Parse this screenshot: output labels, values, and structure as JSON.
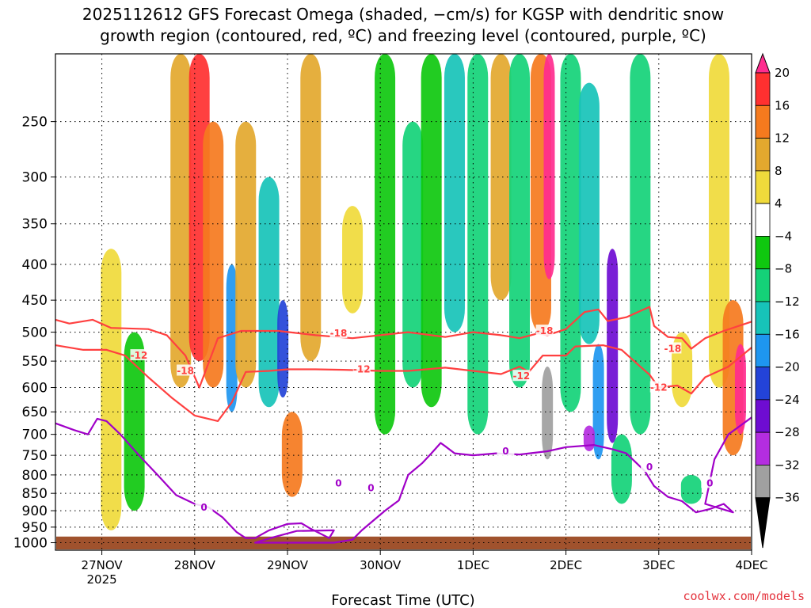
{
  "title": {
    "line1": "2025112612 GFS Forecast Omega (shaded, −cm/s) for KGSP with dendritic snow",
    "line2": "growth region (contoured, red, ºC) and freezing level (contoured, purple, ºC)"
  },
  "credit": "coolwx.com/models",
  "colors": {
    "snow_growth_contour": "#ff4040",
    "freezing_contour": "#a000c8",
    "ground": "#a0522d",
    "grid": "#000000"
  },
  "chart_data": {
    "type": "heatmap",
    "xlabel": "Forecast Time (UTC)",
    "ylabel": "",
    "x_ticks": [
      {
        "label": "27NOV",
        "sublabel": "2025",
        "t": 0.5
      },
      {
        "label": "28NOV",
        "t": 1.5
      },
      {
        "label": "29NOV",
        "t": 2.5
      },
      {
        "label": "30NOV",
        "t": 3.5
      },
      {
        "label": "1DEC",
        "t": 4.5
      },
      {
        "label": "2DEC",
        "t": 5.5
      },
      {
        "label": "3DEC",
        "t": 6.5
      },
      {
        "label": "4DEC",
        "t": 7.5
      }
    ],
    "xlim": [
      0,
      7.5
    ],
    "y_ticks": [
      250,
      300,
      350,
      400,
      450,
      500,
      550,
      600,
      650,
      700,
      750,
      800,
      850,
      900,
      950,
      1000
    ],
    "ylim": [
      1025,
      200
    ],
    "y_scale": "log-pressure",
    "grid": true,
    "colorbar": {
      "levels": [
        -36,
        -32,
        -28,
        -24,
        -20,
        -16,
        -12,
        -8,
        -4,
        4,
        8,
        12,
        16,
        20
      ],
      "labels": [
        "20",
        "16",
        "12",
        "8",
        "4",
        "−4",
        "−8",
        "−12",
        "−16",
        "−20",
        "−24",
        "−28",
        "−32",
        "−36"
      ],
      "colors": [
        "#ff2d8f",
        "#ff3030",
        "#f57a1e",
        "#e3a82e",
        "#f0da3b",
        "#ffffff",
        "#0fc80f",
        "#14d278",
        "#17c3b9",
        "#1e96f0",
        "#2343d8",
        "#6e0cd2",
        "#b42de0",
        "#a0a0a0",
        "#000000"
      ]
    },
    "shading": [
      {
        "center_t": 0.6,
        "p_top": 380,
        "p_bot": 960,
        "value": 6
      },
      {
        "center_t": 0.85,
        "p_top": 500,
        "p_bot": 900,
        "value": -8
      },
      {
        "center_t": 1.35,
        "p_top": 200,
        "p_bot": 600,
        "value": 8
      },
      {
        "center_t": 1.55,
        "p_top": 200,
        "p_bot": 550,
        "value": 16
      },
      {
        "center_t": 1.7,
        "p_top": 250,
        "p_bot": 600,
        "value": 12
      },
      {
        "center_t": 1.9,
        "p_top": 400,
        "p_bot": 650,
        "value": -20
      },
      {
        "center_t": 2.05,
        "p_top": 250,
        "p_bot": 600,
        "value": 8
      },
      {
        "center_t": 2.3,
        "p_top": 300,
        "p_bot": 640,
        "value": -16
      },
      {
        "center_t": 2.45,
        "p_top": 450,
        "p_bot": 620,
        "value": -24
      },
      {
        "center_t": 2.55,
        "p_top": 650,
        "p_bot": 860,
        "value": 12
      },
      {
        "center_t": 2.75,
        "p_top": 200,
        "p_bot": 550,
        "value": 8
      },
      {
        "center_t": 3.2,
        "p_top": 330,
        "p_bot": 470,
        "value": 4
      },
      {
        "center_t": 3.55,
        "p_top": 200,
        "p_bot": 700,
        "value": -8
      },
      {
        "center_t": 3.85,
        "p_top": 250,
        "p_bot": 600,
        "value": -12
      },
      {
        "center_t": 4.05,
        "p_top": 200,
        "p_bot": 640,
        "value": -8
      },
      {
        "center_t": 4.3,
        "p_top": 200,
        "p_bot": 500,
        "value": -16
      },
      {
        "center_t": 4.55,
        "p_top": 200,
        "p_bot": 700,
        "value": -12
      },
      {
        "center_t": 4.8,
        "p_top": 200,
        "p_bot": 450,
        "value": 8
      },
      {
        "center_t": 5.0,
        "p_top": 200,
        "p_bot": 600,
        "value": -12
      },
      {
        "center_t": 5.23,
        "p_top": 200,
        "p_bot": 500,
        "value": 12
      },
      {
        "center_t": 5.32,
        "p_top": 200,
        "p_bot": 420,
        "value": 20
      },
      {
        "center_t": 5.3,
        "p_top": 560,
        "p_bot": 760,
        "value": -36
      },
      {
        "center_t": 5.55,
        "p_top": 200,
        "p_bot": 650,
        "value": -12
      },
      {
        "center_t": 5.75,
        "p_top": 220,
        "p_bot": 520,
        "value": -16
      },
      {
        "center_t": 5.85,
        "p_top": 520,
        "p_bot": 760,
        "value": -20
      },
      {
        "center_t": 5.75,
        "p_top": 680,
        "p_bot": 740,
        "value": -32
      },
      {
        "center_t": 6.0,
        "p_top": 380,
        "p_bot": 720,
        "value": -28
      },
      {
        "center_t": 6.3,
        "p_top": 200,
        "p_bot": 700,
        "value": -12
      },
      {
        "center_t": 6.1,
        "p_top": 700,
        "p_bot": 880,
        "value": -12
      },
      {
        "center_t": 6.75,
        "p_top": 500,
        "p_bot": 640,
        "value": 6
      },
      {
        "center_t": 7.15,
        "p_top": 200,
        "p_bot": 600,
        "value": 6
      },
      {
        "center_t": 7.3,
        "p_top": 450,
        "p_bot": 750,
        "value": 12
      },
      {
        "center_t": 7.38,
        "p_top": 520,
        "p_bot": 700,
        "value": 20
      },
      {
        "center_t": 6.85,
        "p_top": 800,
        "p_bot": 880,
        "value": -12
      }
    ],
    "series": [
      {
        "name": "-18",
        "values": [
          [
            0.0,
            480
          ],
          [
            0.15,
            486
          ],
          [
            0.4,
            480
          ],
          [
            0.6,
            493
          ],
          [
            1.0,
            495
          ],
          [
            1.2,
            505
          ],
          [
            1.4,
            540
          ],
          [
            1.55,
            600
          ],
          [
            1.75,
            510
          ],
          [
            2.0,
            498
          ],
          [
            2.4,
            498
          ],
          [
            2.8,
            505
          ],
          [
            3.2,
            510
          ],
          [
            3.5,
            505
          ],
          [
            3.8,
            500
          ],
          [
            4.2,
            508
          ],
          [
            4.5,
            500
          ],
          [
            4.8,
            505
          ],
          [
            5.0,
            510
          ],
          [
            5.2,
            502
          ],
          [
            5.3,
            505
          ],
          [
            5.5,
            495
          ],
          [
            5.7,
            468
          ],
          [
            5.85,
            464
          ],
          [
            5.95,
            482
          ],
          [
            6.15,
            476
          ],
          [
            6.4,
            460
          ],
          [
            6.45,
            490
          ],
          [
            6.6,
            508
          ],
          [
            6.75,
            510
          ],
          [
            6.85,
            528
          ],
          [
            7.0,
            510
          ],
          [
            7.2,
            498
          ],
          [
            7.5,
            483
          ]
        ],
        "labels": [
          {
            "text": "-18",
            "t": 3.05,
            "p": 502
          },
          {
            "text": "-18",
            "t": 5.27,
            "p": 498
          },
          {
            "text": "-18",
            "t": 6.65,
            "p": 528
          },
          {
            "text": "-18",
            "t": 1.4,
            "p": 568
          }
        ]
      },
      {
        "name": "-12",
        "values": [
          [
            0.0,
            522
          ],
          [
            0.3,
            530
          ],
          [
            0.55,
            530
          ],
          [
            0.75,
            540
          ],
          [
            1.0,
            580
          ],
          [
            1.25,
            620
          ],
          [
            1.5,
            658
          ],
          [
            1.75,
            670
          ],
          [
            1.9,
            630
          ],
          [
            2.05,
            570
          ],
          [
            2.3,
            568
          ],
          [
            2.5,
            565
          ],
          [
            2.8,
            565
          ],
          [
            3.1,
            566
          ],
          [
            3.5,
            568
          ],
          [
            3.8,
            568
          ],
          [
            4.2,
            562
          ],
          [
            4.5,
            568
          ],
          [
            4.8,
            574
          ],
          [
            5.0,
            560
          ],
          [
            5.1,
            570
          ],
          [
            5.25,
            540
          ],
          [
            5.5,
            540
          ],
          [
            5.6,
            524
          ],
          [
            5.9,
            522
          ],
          [
            6.1,
            530
          ],
          [
            6.3,
            560
          ],
          [
            6.4,
            575
          ],
          [
            6.5,
            600
          ],
          [
            6.7,
            596
          ],
          [
            6.85,
            612
          ],
          [
            7.0,
            580
          ],
          [
            7.25,
            560
          ],
          [
            7.5,
            526
          ]
        ],
        "labels": [
          {
            "text": "-12",
            "t": 0.9,
            "p": 540
          },
          {
            "text": "-12",
            "t": 3.3,
            "p": 565
          },
          {
            "text": "-12",
            "t": 5.02,
            "p": 578
          },
          {
            "text": "-12",
            "t": 6.5,
            "p": 600
          }
        ]
      },
      {
        "name": "0",
        "values": [
          [
            0.0,
            675
          ],
          [
            0.2,
            690
          ],
          [
            0.35,
            700
          ],
          [
            0.45,
            665
          ],
          [
            0.55,
            670
          ],
          [
            0.7,
            700
          ],
          [
            0.9,
            750
          ],
          [
            1.1,
            800
          ],
          [
            1.3,
            855
          ],
          [
            1.5,
            880
          ],
          [
            1.65,
            890
          ],
          [
            1.8,
            920
          ],
          [
            1.95,
            965
          ],
          [
            2.05,
            985
          ],
          [
            2.15,
            985
          ],
          [
            2.3,
            960
          ],
          [
            2.5,
            940
          ],
          [
            2.65,
            938
          ],
          [
            2.75,
            955
          ],
          [
            2.95,
            985
          ],
          [
            3.0,
            960
          ],
          [
            2.6,
            962
          ],
          [
            2.35,
            982
          ],
          [
            2.15,
            1000
          ],
          [
            3.0,
            1000
          ],
          [
            3.2,
            990
          ],
          [
            3.3,
            960
          ],
          [
            3.55,
            900
          ],
          [
            3.7,
            870
          ],
          [
            3.8,
            800
          ],
          [
            3.95,
            770
          ],
          [
            4.05,
            745
          ],
          [
            4.15,
            720
          ],
          [
            4.2,
            728
          ],
          [
            4.3,
            745
          ],
          [
            4.5,
            750
          ],
          [
            4.75,
            745
          ],
          [
            5.0,
            748
          ],
          [
            5.3,
            740
          ],
          [
            5.5,
            730
          ],
          [
            5.8,
            725
          ],
          [
            6.0,
            735
          ],
          [
            6.15,
            745
          ],
          [
            6.35,
            790
          ],
          [
            6.45,
            830
          ],
          [
            6.6,
            860
          ],
          [
            6.75,
            872
          ],
          [
            6.9,
            905
          ],
          [
            7.05,
            895
          ],
          [
            7.2,
            880
          ],
          [
            7.3,
            905
          ],
          [
            7.0,
            880
          ],
          [
            7.1,
            760
          ],
          [
            7.25,
            700
          ],
          [
            7.5,
            662
          ]
        ],
        "labels": [
          {
            "text": "0",
            "t": 1.6,
            "p": 890
          },
          {
            "text": "0",
            "t": 3.05,
            "p": 822
          },
          {
            "text": "0",
            "t": 3.4,
            "p": 835
          },
          {
            "text": "0",
            "t": 4.85,
            "p": 740
          },
          {
            "text": "0",
            "t": 6.4,
            "p": 780
          },
          {
            "text": "0",
            "t": 7.05,
            "p": 822
          }
        ]
      }
    ],
    "ground_level_pressure": 980
  }
}
